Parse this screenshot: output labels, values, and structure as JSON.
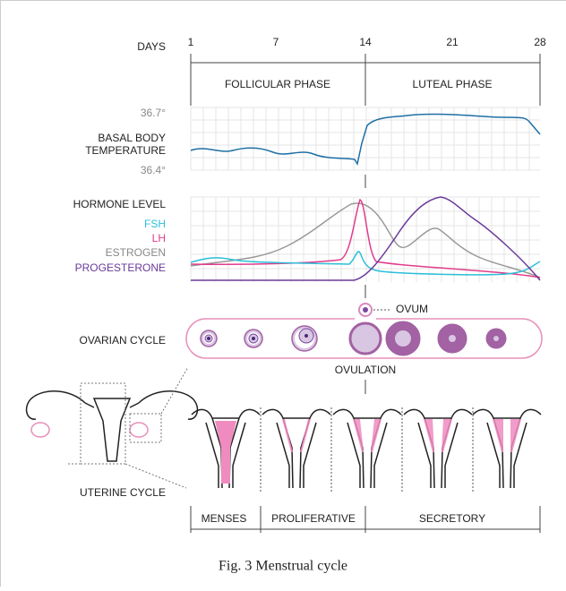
{
  "header": {
    "days_label": "DAYS",
    "days": [
      1,
      7,
      14,
      21,
      28
    ],
    "phases": [
      "FOLLICULAR PHASE",
      "LUTEAL PHASE"
    ]
  },
  "temperature": {
    "label_line1": "BASAL BODY",
    "label_line2": "TEMPERATURE",
    "high": "36.7°",
    "low": "36.4°"
  },
  "hormones": {
    "title": "HORMONE LEVEL",
    "fsh": "FSH",
    "lh": "LH",
    "estrogen": "ESTROGEN",
    "progesterone": "PROGESTERONE"
  },
  "ovarian": {
    "label": "OVARIAN CYCLE",
    "ovum": "OVUM",
    "ovulation": "OVULATION"
  },
  "uterine": {
    "label": "UTERINE CYCLE",
    "phases": [
      "MENSES",
      "PROLIFERATIVE",
      "SECRETORY"
    ]
  },
  "caption": "Fig. 3 Menstrual cycle"
}
